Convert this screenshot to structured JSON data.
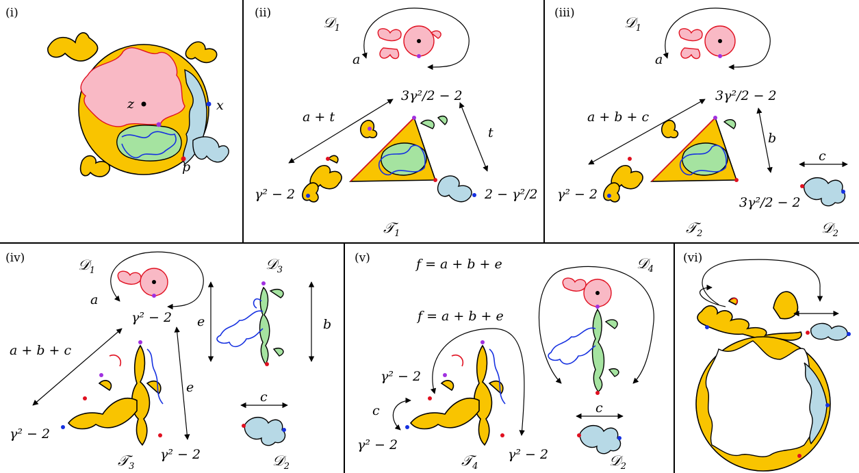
{
  "panels": {
    "i": {
      "tag": "(i)",
      "z": "z",
      "x": "x",
      "p": "p"
    },
    "ii": {
      "tag": "(ii)",
      "D1": "𝒟",
      "D1sub": "1",
      "a": "a",
      "top": "3γ²/2 − 2",
      "a_t": "a + t",
      "t": "t",
      "left": "γ² − 2",
      "right": "2 − γ²/2",
      "T": "𝒯",
      "Tsub": "1"
    },
    "iii": {
      "tag": "(iii)",
      "D1": "𝒟",
      "D1sub": "1",
      "a": "a",
      "top": "3γ²/2 − 2",
      "abc": "a + b + c",
      "b": "b",
      "c": "c",
      "left": "γ² − 2",
      "bottom": "3γ²/2 − 2",
      "T": "𝒯",
      "Tsub": "2",
      "D2": "𝒟",
      "D2sub": "2"
    },
    "iv": {
      "tag": "(iv)",
      "D1": "𝒟",
      "D1sub": "1",
      "D3": "𝒟",
      "D3sub": "3",
      "a": "a",
      "top": "γ² − 2",
      "e1": "e",
      "e2": "e",
      "b": "b",
      "abc": "a + b + c",
      "c": "c",
      "left": "γ² − 2",
      "right": "γ² − 2",
      "T": "𝒯",
      "Tsub": "3",
      "D2": "𝒟",
      "D2sub": "2"
    },
    "v": {
      "tag": "(v)",
      "f1": "f = a + b + e",
      "f2": "f = a + b + e",
      "D4": "𝒟",
      "D4sub": "4",
      "left_top": "γ² − 2",
      "c1": "c",
      "left_bot": "γ² − 2",
      "right": "γ² − 2",
      "c2": "c",
      "T": "𝒯",
      "Tsub": "4",
      "D2": "𝒟",
      "D2sub": "2"
    },
    "vi": {
      "tag": "(vi)"
    }
  },
  "colors": {
    "yellow": "#f9c400",
    "blue": "#b7d9e6",
    "green": "#a5e3a0",
    "pink": "#f9b9c5",
    "red": "#e01020",
    "darkblue": "#1530e0",
    "purple": "#a030e0"
  }
}
